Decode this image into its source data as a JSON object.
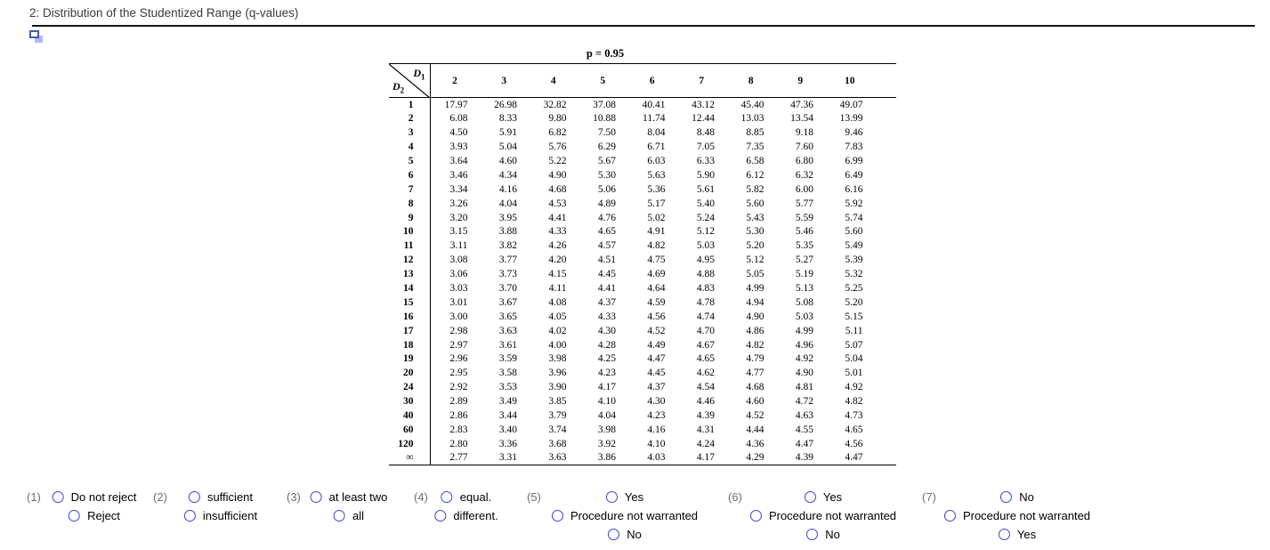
{
  "page": {
    "title": "2: Distribution of the Studentized Range (q-values)"
  },
  "icons": {
    "copy_icon": "overlapping-windows-icon"
  },
  "table": {
    "p_label": "p = 0.95",
    "corner_top": "D",
    "corner_top_sub": "1",
    "corner_bottom": "D",
    "corner_bottom_sub": "2",
    "columns": [
      "2",
      "3",
      "4",
      "5",
      "6",
      "7",
      "8",
      "9",
      "10"
    ],
    "rows": [
      {
        "label": "1",
        "values": [
          "17.97",
          "26.98",
          "32.82",
          "37.08",
          "40.41",
          "43.12",
          "45.40",
          "47.36",
          "49.07"
        ]
      },
      {
        "label": "2",
        "values": [
          "6.08",
          "8.33",
          "9.80",
          "10.88",
          "11.74",
          "12.44",
          "13.03",
          "13.54",
          "13.99"
        ]
      },
      {
        "label": "3",
        "values": [
          "4.50",
          "5.91",
          "6.82",
          "7.50",
          "8.04",
          "8.48",
          "8.85",
          "9.18",
          "9.46"
        ]
      },
      {
        "label": "4",
        "values": [
          "3.93",
          "5.04",
          "5.76",
          "6.29",
          "6.71",
          "7.05",
          "7.35",
          "7.60",
          "7.83"
        ]
      },
      {
        "label": "5",
        "values": [
          "3.64",
          "4.60",
          "5.22",
          "5.67",
          "6.03",
          "6.33",
          "6.58",
          "6.80",
          "6.99"
        ]
      },
      {
        "label": "6",
        "values": [
          "3.46",
          "4.34",
          "4.90",
          "5.30",
          "5.63",
          "5.90",
          "6.12",
          "6.32",
          "6.49"
        ]
      },
      {
        "label": "7",
        "values": [
          "3.34",
          "4.16",
          "4.68",
          "5.06",
          "5.36",
          "5.61",
          "5.82",
          "6.00",
          "6.16"
        ]
      },
      {
        "label": "8",
        "values": [
          "3.26",
          "4.04",
          "4.53",
          "4.89",
          "5.17",
          "5.40",
          "5.60",
          "5.77",
          "5.92"
        ]
      },
      {
        "label": "9",
        "values": [
          "3.20",
          "3.95",
          "4.41",
          "4.76",
          "5.02",
          "5.24",
          "5.43",
          "5.59",
          "5.74"
        ]
      },
      {
        "label": "10",
        "values": [
          "3.15",
          "3.88",
          "4.33",
          "4.65",
          "4.91",
          "5.12",
          "5.30",
          "5.46",
          "5.60"
        ]
      },
      {
        "label": "11",
        "values": [
          "3.11",
          "3.82",
          "4.26",
          "4.57",
          "4.82",
          "5.03",
          "5.20",
          "5.35",
          "5.49"
        ]
      },
      {
        "label": "12",
        "values": [
          "3.08",
          "3.77",
          "4.20",
          "4.51",
          "4.75",
          "4.95",
          "5.12",
          "5.27",
          "5.39"
        ]
      },
      {
        "label": "13",
        "values": [
          "3.06",
          "3.73",
          "4.15",
          "4.45",
          "4.69",
          "4.88",
          "5.05",
          "5.19",
          "5.32"
        ]
      },
      {
        "label": "14",
        "values": [
          "3.03",
          "3.70",
          "4.11",
          "4.41",
          "4.64",
          "4.83",
          "4.99",
          "5.13",
          "5.25"
        ]
      },
      {
        "label": "15",
        "values": [
          "3.01",
          "3.67",
          "4.08",
          "4.37",
          "4.59",
          "4.78",
          "4.94",
          "5.08",
          "5.20"
        ]
      },
      {
        "label": "16",
        "values": [
          "3.00",
          "3.65",
          "4.05",
          "4.33",
          "4.56",
          "4.74",
          "4.90",
          "5.03",
          "5.15"
        ]
      },
      {
        "label": "17",
        "values": [
          "2.98",
          "3.63",
          "4.02",
          "4.30",
          "4.52",
          "4.70",
          "4.86",
          "4.99",
          "5.11"
        ]
      },
      {
        "label": "18",
        "values": [
          "2.97",
          "3.61",
          "4.00",
          "4.28",
          "4.49",
          "4.67",
          "4.82",
          "4.96",
          "5.07"
        ]
      },
      {
        "label": "19",
        "values": [
          "2.96",
          "3.59",
          "3.98",
          "4.25",
          "4.47",
          "4.65",
          "4.79",
          "4.92",
          "5.04"
        ]
      },
      {
        "label": "20",
        "values": [
          "2.95",
          "3.58",
          "3.96",
          "4.23",
          "4.45",
          "4.62",
          "4.77",
          "4.90",
          "5.01"
        ]
      },
      {
        "label": "24",
        "values": [
          "2.92",
          "3.53",
          "3.90",
          "4.17",
          "4.37",
          "4.54",
          "4.68",
          "4.81",
          "4.92"
        ]
      },
      {
        "label": "30",
        "values": [
          "2.89",
          "3.49",
          "3.85",
          "4.10",
          "4.30",
          "4.46",
          "4.60",
          "4.72",
          "4.82"
        ]
      },
      {
        "label": "40",
        "values": [
          "2.86",
          "3.44",
          "3.79",
          "4.04",
          "4.23",
          "4.39",
          "4.52",
          "4.63",
          "4.73"
        ]
      },
      {
        "label": "60",
        "values": [
          "2.83",
          "3.40",
          "3.74",
          "3.98",
          "4.16",
          "4.31",
          "4.44",
          "4.55",
          "4.65"
        ]
      },
      {
        "label": "120",
        "values": [
          "2.80",
          "3.36",
          "3.68",
          "3.92",
          "4.10",
          "4.24",
          "4.36",
          "4.47",
          "4.56"
        ]
      },
      {
        "label": "∞",
        "values": [
          "2.77",
          "3.31",
          "3.63",
          "3.86",
          "4.03",
          "4.17",
          "4.29",
          "4.39",
          "4.47"
        ]
      }
    ]
  },
  "questions": [
    {
      "number": "(1)",
      "options": [
        "Do not reject",
        "Reject"
      ]
    },
    {
      "number": "(2)",
      "options": [
        "sufficient",
        "insufficient"
      ]
    },
    {
      "number": "(3)",
      "options": [
        "at least two",
        "all"
      ]
    },
    {
      "number": "(4)",
      "options": [
        "equal.",
        "different."
      ]
    },
    {
      "number": "(5)",
      "options": [
        "Yes",
        "Procedure not warranted",
        "No"
      ]
    },
    {
      "number": "(6)",
      "options": [
        "Yes",
        "Procedure not warranted",
        "No"
      ]
    },
    {
      "number": "(7)",
      "options": [
        "No",
        "Procedure not warranted",
        "Yes"
      ]
    }
  ]
}
